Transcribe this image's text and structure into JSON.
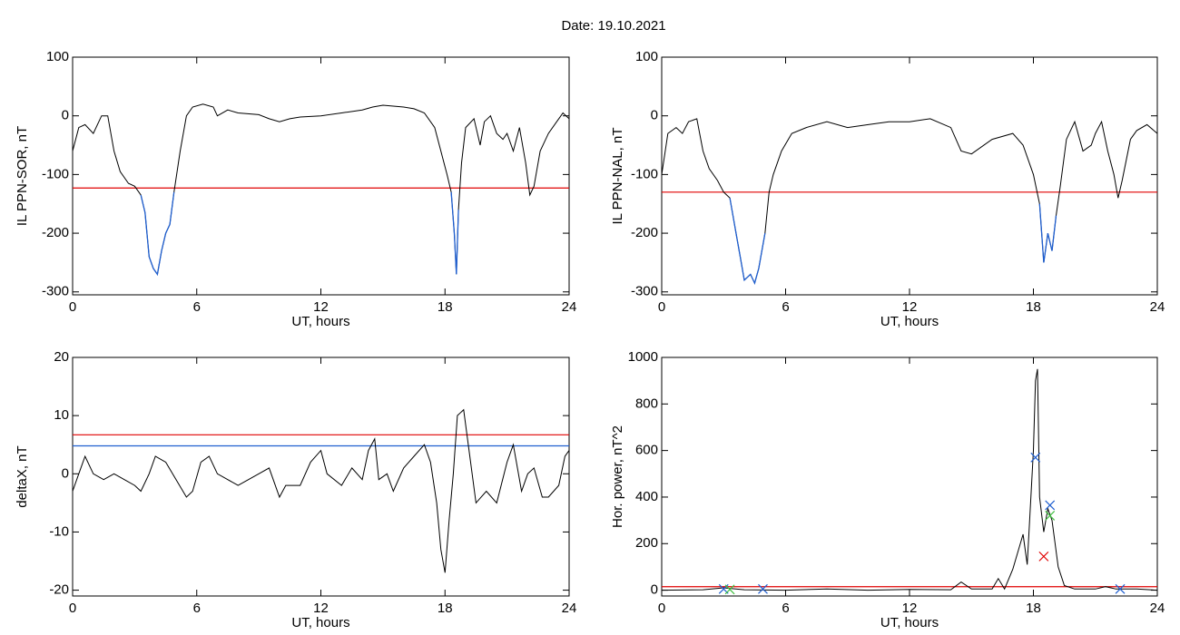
{
  "title": "Date:  19.10.2021",
  "chart_data": [
    {
      "type": "line",
      "ylabel": "IL PPN-SOR, nT",
      "xlabel": "UT, hours",
      "xlim": [
        0,
        24
      ],
      "xticks": [
        0,
        6,
        12,
        18,
        24
      ],
      "ylim": [
        -305,
        100
      ],
      "yticks": [
        100,
        0,
        -100,
        -200,
        -300
      ],
      "color": "#000000",
      "highlight_color": "#1f5fd0",
      "hlines": [
        {
          "value": -123,
          "color": "#e00000"
        }
      ],
      "x": [
        0,
        0.3,
        0.6,
        1,
        1.4,
        1.7,
        2,
        2.3,
        2.7,
        3,
        3.3,
        3.5,
        3.7,
        3.9,
        4.1,
        4.3,
        4.5,
        4.7,
        4.9,
        5.2,
        5.5,
        5.8,
        6.3,
        6.8,
        7,
        7.5,
        8,
        9,
        9.5,
        10,
        10.5,
        11,
        12,
        13,
        14,
        14.5,
        15,
        16,
        16.5,
        17,
        17.5,
        17.8,
        18.1,
        18.3,
        18.45,
        18.55,
        18.65,
        18.8,
        19,
        19.4,
        19.7,
        19.9,
        20.2,
        20.5,
        20.8,
        21,
        21.3,
        21.6,
        21.9,
        22.1,
        22.3,
        22.6,
        23,
        23.4,
        23.7,
        24
      ],
      "values": [
        -60,
        -20,
        -15,
        -30,
        0,
        0,
        -60,
        -95,
        -115,
        -120,
        -135,
        -165,
        -240,
        -260,
        -270,
        -230,
        -200,
        -185,
        -130,
        -60,
        0,
        15,
        20,
        15,
        0,
        10,
        5,
        2,
        -5,
        -10,
        -5,
        -2,
        0,
        5,
        10,
        15,
        18,
        15,
        12,
        5,
        -20,
        -60,
        -100,
        -130,
        -200,
        -270,
        -160,
        -80,
        -20,
        -5,
        -50,
        -10,
        0,
        -30,
        -40,
        -30,
        -60,
        -20,
        -80,
        -135,
        -120,
        -60,
        -30,
        -10,
        5,
        -5
      ]
    },
    {
      "type": "line",
      "ylabel": "IL PPN-NAL, nT",
      "xlabel": "UT, hours",
      "xlim": [
        0,
        24
      ],
      "xticks": [
        0,
        6,
        12,
        18,
        24
      ],
      "ylim": [
        -305,
        100
      ],
      "yticks": [
        100,
        0,
        -100,
        -200,
        -300
      ],
      "color": "#000000",
      "highlight_color": "#1f5fd0",
      "hlines": [
        {
          "value": -130,
          "color": "#e00000"
        }
      ],
      "x": [
        0,
        0.3,
        0.7,
        1,
        1.3,
        1.7,
        2,
        2.3,
        2.7,
        3,
        3.3,
        3.6,
        3.8,
        4,
        4.3,
        4.5,
        4.7,
        5,
        5.2,
        5.4,
        5.8,
        6.3,
        7,
        8,
        9,
        10,
        11,
        12,
        13,
        14,
        14.5,
        15,
        16,
        17,
        17.5,
        18,
        18.3,
        18.5,
        18.7,
        18.9,
        19.1,
        19.3,
        19.6,
        20,
        20.4,
        20.8,
        21,
        21.3,
        21.6,
        21.9,
        22.1,
        22.3,
        22.7,
        23,
        23.5,
        24
      ],
      "values": [
        -100,
        -30,
        -20,
        -30,
        -10,
        -5,
        -60,
        -90,
        -110,
        -130,
        -140,
        -200,
        -240,
        -280,
        -270,
        -285,
        -260,
        -200,
        -130,
        -100,
        -60,
        -30,
        -20,
        -10,
        -20,
        -15,
        -10,
        -10,
        -5,
        -20,
        -60,
        -65,
        -40,
        -30,
        -50,
        -100,
        -150,
        -250,
        -200,
        -230,
        -170,
        -120,
        -40,
        -10,
        -60,
        -50,
        -30,
        -10,
        -60,
        -100,
        -140,
        -110,
        -40,
        -25,
        -15,
        -30
      ]
    },
    {
      "type": "line",
      "ylabel": "deltaX, nT",
      "xlabel": "UT, hours",
      "xlim": [
        0,
        24
      ],
      "xticks": [
        0,
        6,
        12,
        18,
        24
      ],
      "ylim": [
        -21,
        20
      ],
      "yticks": [
        20,
        10,
        0,
        -10,
        -20
      ],
      "color": "#000000",
      "hlines": [
        {
          "value": 6.7,
          "color": "#e00000"
        },
        {
          "value": 4.8,
          "color": "#1f5fd0"
        }
      ],
      "x": [
        0,
        0.3,
        0.6,
        1,
        1.5,
        2,
        2.5,
        3,
        3.3,
        3.7,
        4,
        4.5,
        5,
        5.5,
        5.8,
        6.2,
        6.6,
        7,
        7.5,
        8,
        8.5,
        9,
        9.5,
        10,
        10.3,
        11,
        11.5,
        12,
        12.3,
        13,
        13.5,
        14,
        14.3,
        14.6,
        14.8,
        15.2,
        15.5,
        16,
        16.5,
        17,
        17.3,
        17.6,
        17.8,
        18,
        18.2,
        18.4,
        18.6,
        18.9,
        19.2,
        19.5,
        20,
        20.5,
        21,
        21.3,
        21.7,
        22,
        22.3,
        22.7,
        23,
        23.5,
        23.8,
        24
      ],
      "values": [
        -3,
        0,
        3,
        0,
        -1,
        0,
        -1,
        -2,
        -3,
        0,
        3,
        2,
        -1,
        -4,
        -3,
        2,
        3,
        0,
        -1,
        -2,
        -1,
        0,
        1,
        -4,
        -2,
        -2,
        2,
        4,
        0,
        -2,
        1,
        -1,
        4,
        6,
        -1,
        0,
        -3,
        1,
        3,
        5,
        2,
        -5,
        -13,
        -17,
        -8,
        0,
        10,
        11,
        3,
        -5,
        -3,
        -5,
        2,
        5,
        -3,
        0,
        1,
        -4,
        -4,
        -2,
        3,
        4
      ]
    },
    {
      "type": "line",
      "ylabel": "Hor. power, nT^2",
      "xlabel": "UT, hours",
      "xlim": [
        0,
        24
      ],
      "xticks": [
        0,
        6,
        12,
        18,
        24
      ],
      "ylim": [
        -25,
        1000
      ],
      "yticks": [
        0,
        200,
        400,
        600,
        800,
        1000
      ],
      "color": "#000000",
      "hlines": [
        {
          "value": 15,
          "color": "#e00000"
        }
      ],
      "x": [
        0,
        2,
        3,
        4,
        6,
        8,
        10,
        12,
        14,
        14.5,
        15,
        16,
        16.3,
        16.6,
        17,
        17.5,
        17.7,
        18,
        18.1,
        18.2,
        18.3,
        18.5,
        18.7,
        18.9,
        19.2,
        19.5,
        20,
        21,
        21.5,
        22,
        23,
        24
      ],
      "values": [
        0,
        2,
        10,
        2,
        0,
        5,
        0,
        3,
        2,
        35,
        5,
        5,
        50,
        5,
        90,
        240,
        110,
        600,
        900,
        950,
        400,
        250,
        350,
        300,
        100,
        20,
        5,
        5,
        15,
        5,
        5,
        0
      ],
      "markers": [
        {
          "color": "#1f5fd0",
          "x": [
            18.1,
            18.8,
            3,
            4.9,
            22.2
          ],
          "values": [
            570,
            365,
            5,
            5,
            5
          ]
        },
        {
          "color": "#40c040",
          "x": [
            18.8,
            3.3
          ],
          "values": [
            320,
            3
          ]
        },
        {
          "color": "#e00000",
          "x": [
            18.5
          ],
          "values": [
            145
          ]
        }
      ]
    }
  ]
}
